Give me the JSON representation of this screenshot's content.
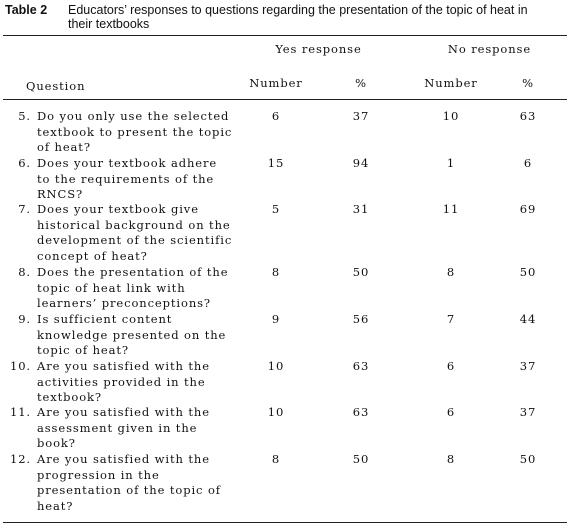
{
  "caption": {
    "label": "Table 2",
    "line1": "Educators’ responses to questions regarding the presentation of the topic of heat in",
    "line2": "their textbooks"
  },
  "header": {
    "yes_group": "Yes response",
    "no_group": "No response",
    "question": "Question",
    "number": "Number",
    "percent": "%"
  },
  "rows": [
    {
      "n": "5.",
      "lines": [
        "Do you only use the selected",
        "textbook to present the topic",
        "of heat?"
      ],
      "yes_num": "6",
      "yes_pct": "37",
      "no_num": "10",
      "no_pct": "63"
    },
    {
      "n": "6.",
      "lines": [
        "Does your textbook adhere",
        "to the requirements of the",
        "RNCS?"
      ],
      "yes_num": "15",
      "yes_pct": "94",
      "no_num": "1",
      "no_pct": "6"
    },
    {
      "n": "7.",
      "lines": [
        "Does your textbook give",
        "historical background on the",
        "development of the scientific",
        "concept of heat?"
      ],
      "yes_num": "5",
      "yes_pct": "31",
      "no_num": "11",
      "no_pct": "69"
    },
    {
      "n": "8.",
      "lines": [
        "Does the presentation of the",
        "topic of heat link with",
        "learners’ preconceptions?"
      ],
      "yes_num": "8",
      "yes_pct": "50",
      "no_num": "8",
      "no_pct": "50"
    },
    {
      "n": "9.",
      "lines": [
        "Is sufficient content",
        "knowledge presented on the",
        "topic of heat?"
      ],
      "yes_num": "9",
      "yes_pct": "56",
      "no_num": "7",
      "no_pct": "44"
    },
    {
      "n": "10.",
      "lines": [
        "Are you satisfied with the",
        "activities provided in the",
        "textbook?"
      ],
      "yes_num": "10",
      "yes_pct": "63",
      "no_num": "6",
      "no_pct": "37"
    },
    {
      "n": "11.",
      "lines": [
        "Are you satisfied with the",
        "assessment given in the",
        "book?"
      ],
      "yes_num": "10",
      "yes_pct": "63",
      "no_num": "6",
      "no_pct": "37"
    },
    {
      "n": "12.",
      "lines": [
        "Are you satisfied with the",
        "progression in the",
        "presentation of the topic of",
        "heat?"
      ],
      "yes_num": "8",
      "yes_pct": "50",
      "no_num": "8",
      "no_pct": "50"
    }
  ]
}
